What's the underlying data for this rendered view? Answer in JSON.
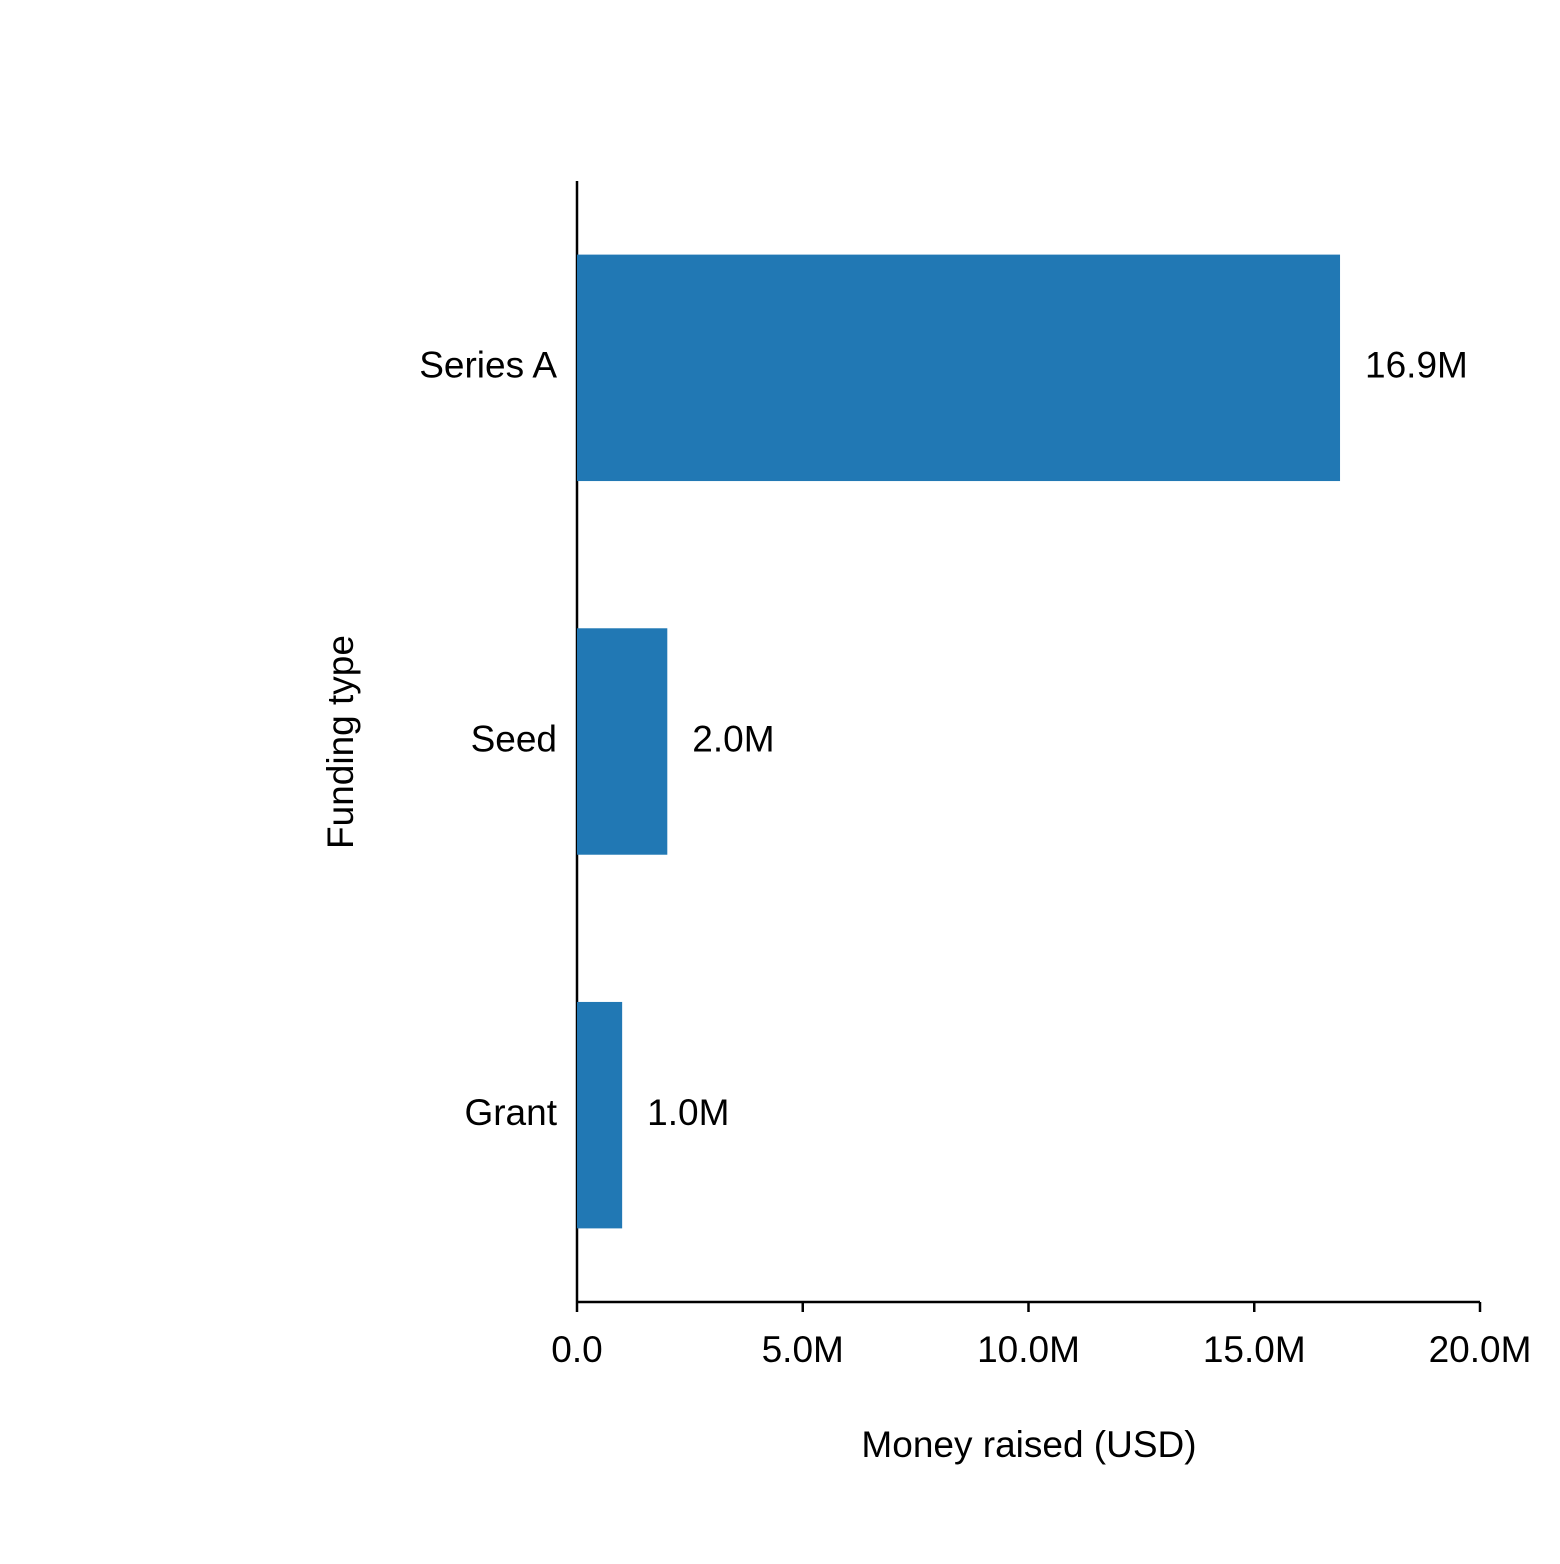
{
  "chart_data": {
    "type": "bar",
    "orientation": "horizontal",
    "x_label": "Money raised (USD)",
    "y_label": "Funding type",
    "categories": [
      "Series A",
      "Seed",
      "Grant"
    ],
    "values": [
      16900000,
      2000000,
      1000000
    ],
    "value_labels": [
      "16.9M",
      "2.0M",
      "1.0M"
    ],
    "color": "#2178b4",
    "xlim": [
      0,
      20000000
    ],
    "xticks": [
      {
        "value": 0,
        "label": "0.0"
      },
      {
        "value": 5000000,
        "label": "5.0M"
      },
      {
        "value": 10000000,
        "label": "10.0M"
      },
      {
        "value": 15000000,
        "label": "15.0M"
      },
      {
        "value": 20000000,
        "label": "20.0M"
      }
    ],
    "grid": false
  }
}
